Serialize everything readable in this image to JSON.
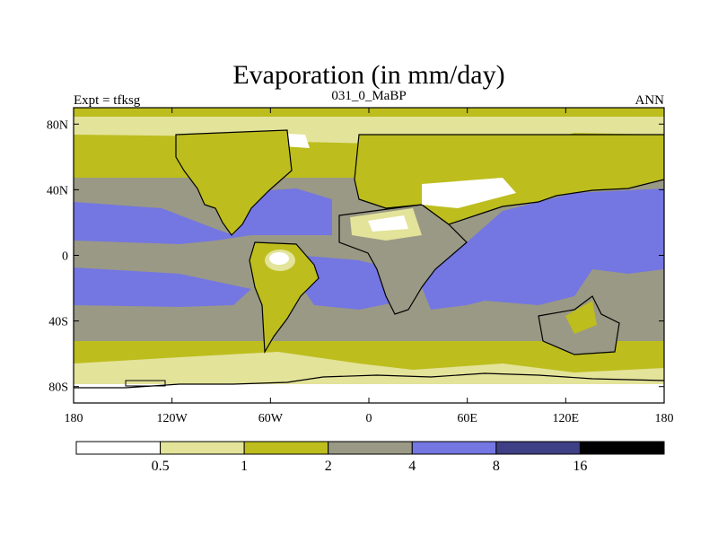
{
  "title": "Evaporation (in mm/day)",
  "experiment_label": "Expt = tfksg",
  "subtitle": "031_0_MaBP",
  "period_label": "ANN",
  "map": {
    "projection": "cylindrical equidistant",
    "lon_range": [
      -180,
      180
    ],
    "lat_range": [
      -90,
      90
    ],
    "x_ticks": [
      {
        "lon": -180,
        "label": "180"
      },
      {
        "lon": -120,
        "label": "120W"
      },
      {
        "lon": -60,
        "label": "60W"
      },
      {
        "lon": 0,
        "label": "0"
      },
      {
        "lon": 60,
        "label": "60E"
      },
      {
        "lon": 120,
        "label": "120E"
      },
      {
        "lon": 180,
        "label": "180"
      }
    ],
    "y_ticks": [
      {
        "lat": 80,
        "label": "80N"
      },
      {
        "lat": 40,
        "label": "40N"
      },
      {
        "lat": 0,
        "label": "0"
      },
      {
        "lat": -40,
        "label": "40S"
      },
      {
        "lat": -80,
        "label": "80S"
      }
    ]
  },
  "colorbar": {
    "levels": [
      "0.5",
      "1",
      "2",
      "4",
      "8",
      "16"
    ],
    "colors": [
      "#ffffff",
      "#e3e39a",
      "#bdbd1e",
      "#9a9985",
      "#7476e2",
      "#3f3f85",
      "#000000"
    ]
  }
}
